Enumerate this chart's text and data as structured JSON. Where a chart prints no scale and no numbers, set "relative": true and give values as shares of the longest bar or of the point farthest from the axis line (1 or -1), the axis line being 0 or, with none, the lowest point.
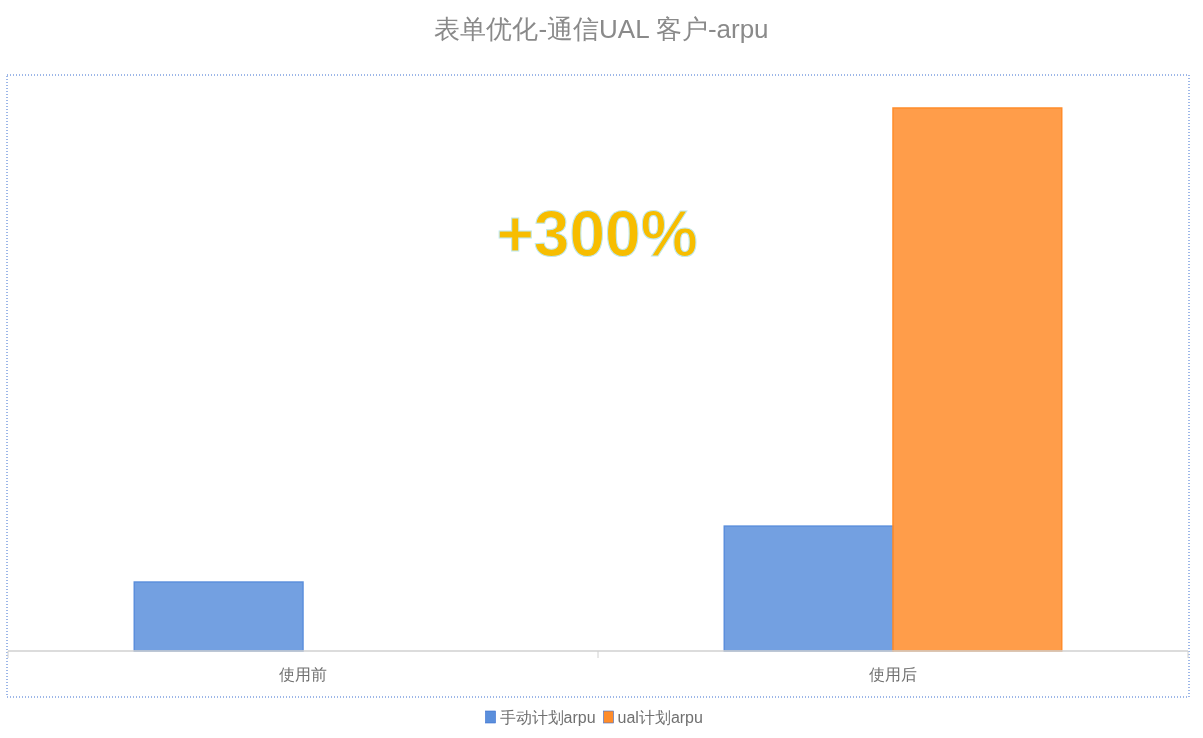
{
  "chart_data": {
    "type": "bar",
    "title": "表单优化-通信UAL 客户-arpu",
    "relative": true,
    "categories": [
      "使用前",
      "使用后"
    ],
    "series": [
      {
        "name": "手动计划arpu",
        "color": "#5b8fdc",
        "values": [
          0.127,
          0.23
        ]
      },
      {
        "name": "ual计划arpu",
        "color": "#ff8c2a",
        "values": [
          null,
          1
        ]
      }
    ],
    "annotations": [
      "+300%"
    ],
    "legend": "bottom",
    "grid": false
  }
}
